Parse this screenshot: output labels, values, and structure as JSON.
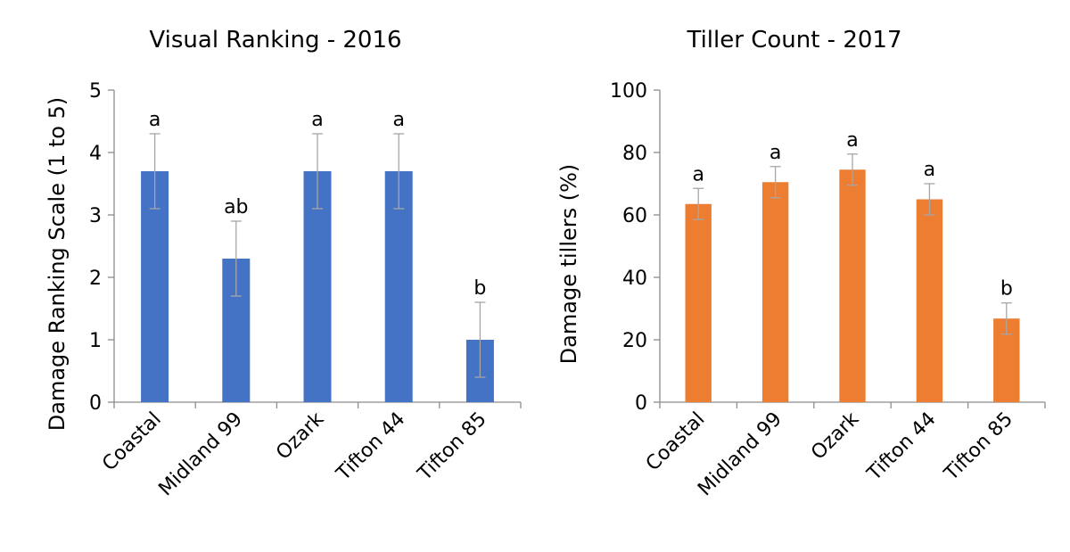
{
  "chart_data": [
    {
      "type": "bar",
      "title": "Visual Ranking - 2016",
      "xlabel": "",
      "ylabel": "Damage Ranking Scale (1 to 5)",
      "ylim": [
        0,
        5
      ],
      "yticks": [
        0,
        1,
        2,
        3,
        4,
        5
      ],
      "grid": false,
      "categories": [
        "Coastal",
        "Midland 99",
        "Ozark",
        "Tifton 44",
        "Tifton 85"
      ],
      "values": [
        3.7,
        2.3,
        3.7,
        3.7,
        1.0
      ],
      "errors": [
        0.6,
        0.6,
        0.6,
        0.6,
        0.6
      ],
      "significance": [
        "a",
        "ab",
        "a",
        "a",
        "b"
      ],
      "color": "#4472c4"
    },
    {
      "type": "bar",
      "title": "Tiller Count - 2017",
      "xlabel": "",
      "ylabel": "Damage tillers (%)",
      "ylim": [
        0,
        100
      ],
      "yticks": [
        0,
        20,
        40,
        60,
        80,
        100
      ],
      "grid": false,
      "categories": [
        "Coastal",
        "Midland 99",
        "Ozark",
        "Tifton 44",
        "Tifton 85"
      ],
      "values": [
        63.5,
        70.5,
        74.5,
        65,
        26.8
      ],
      "errors": [
        5,
        5,
        5,
        5,
        5
      ],
      "significance": [
        "a",
        "a",
        "a",
        "a",
        "b"
      ],
      "color": "#ed7d31"
    }
  ]
}
